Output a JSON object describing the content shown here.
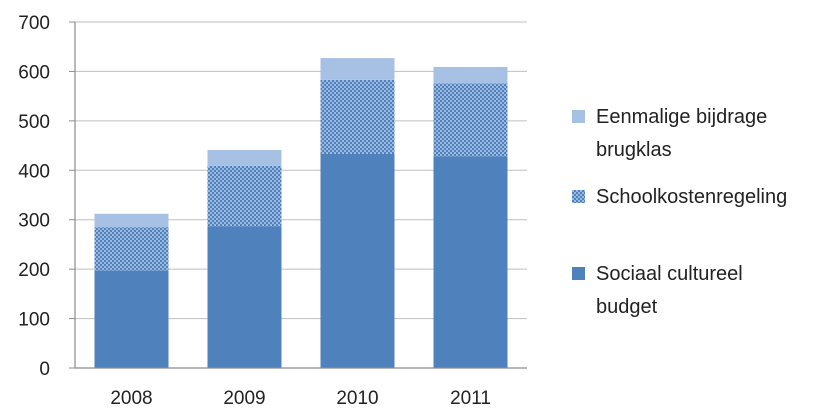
{
  "chart_data": {
    "type": "bar",
    "stacked": true,
    "categories": [
      "2008",
      "2009",
      "2010",
      "2011"
    ],
    "series": [
      {
        "name": "Sociaal cultureel budget",
        "values": [
          197,
          287,
          433,
          428
        ],
        "color": "#4f81bd",
        "pattern": "solid"
      },
      {
        "name": "Schoolkostenregeling",
        "values": [
          88,
          122,
          150,
          148
        ],
        "color": "#4f81bd",
        "pattern": "dotted"
      },
      {
        "name": "Eenmalige bijdrage brugklas",
        "values": [
          27,
          32,
          44,
          33
        ],
        "color": "#a6c1e3",
        "pattern": "solid"
      }
    ],
    "ylim": [
      0,
      700
    ],
    "yticks": [
      "0",
      "100",
      "200",
      "300",
      "400",
      "500",
      "600",
      "700"
    ],
    "grid": "horizontal",
    "legend": {
      "position": "right",
      "items": [
        {
          "series": 2,
          "lines": [
            "Eenmalige bijdrage",
            "brugklas"
          ]
        },
        {
          "series": 1,
          "lines": [
            "Schoolkostenregeling"
          ]
        },
        {
          "series": 0,
          "lines": [
            "Sociaal cultureel",
            "budget"
          ]
        }
      ]
    }
  }
}
